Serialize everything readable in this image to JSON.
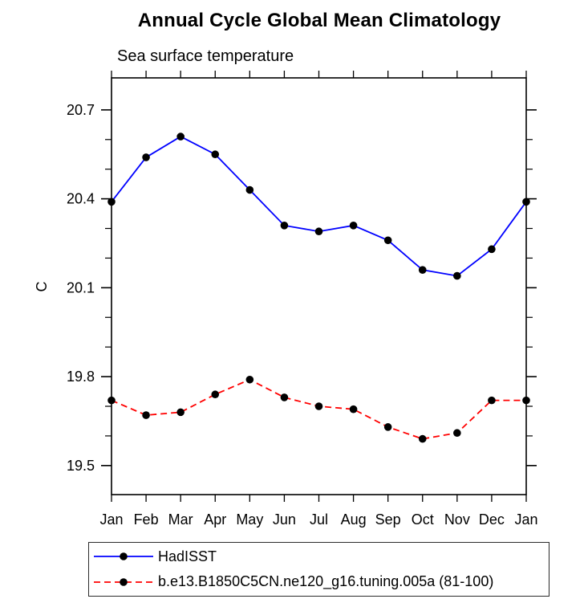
{
  "page": {
    "background": "#ffffff",
    "text_color": "#000000"
  },
  "chart_data": {
    "type": "line",
    "title": "Annual Cycle Global Mean Climatology",
    "subtitle": "Sea surface temperature",
    "xlabel": "",
    "ylabel": "C",
    "categories": [
      "Jan",
      "Feb",
      "Mar",
      "Apr",
      "May",
      "Jun",
      "Jul",
      "Aug",
      "Sep",
      "Oct",
      "Nov",
      "Dec",
      "Jan"
    ],
    "ylim": [
      19.402,
      20.808
    ],
    "y_ticks_major": [
      19.5,
      19.8,
      20.1,
      20.4,
      20.7
    ],
    "y_minor_step": 0.1,
    "grid": false,
    "legend_position": "bottom-left-box",
    "frame": "full-box-outward-ticks",
    "series": [
      {
        "name": "HadISST",
        "color": "#0000ff",
        "style": "solid",
        "marker": "circle",
        "marker_color": "#000000",
        "values": [
          20.39,
          20.54,
          20.61,
          20.55,
          20.43,
          20.31,
          20.29,
          20.31,
          20.26,
          20.16,
          20.14,
          20.23,
          20.39
        ]
      },
      {
        "name": "b.e13.B1850C5CN.ne120_g16.tuning.005a (81-100)",
        "color": "#ff0000",
        "style": "dashed",
        "marker": "circle",
        "marker_color": "#000000",
        "values": [
          19.72,
          19.67,
          19.68,
          19.74,
          19.79,
          19.73,
          19.7,
          19.69,
          19.63,
          19.59,
          19.61,
          19.72,
          19.72
        ]
      }
    ]
  }
}
